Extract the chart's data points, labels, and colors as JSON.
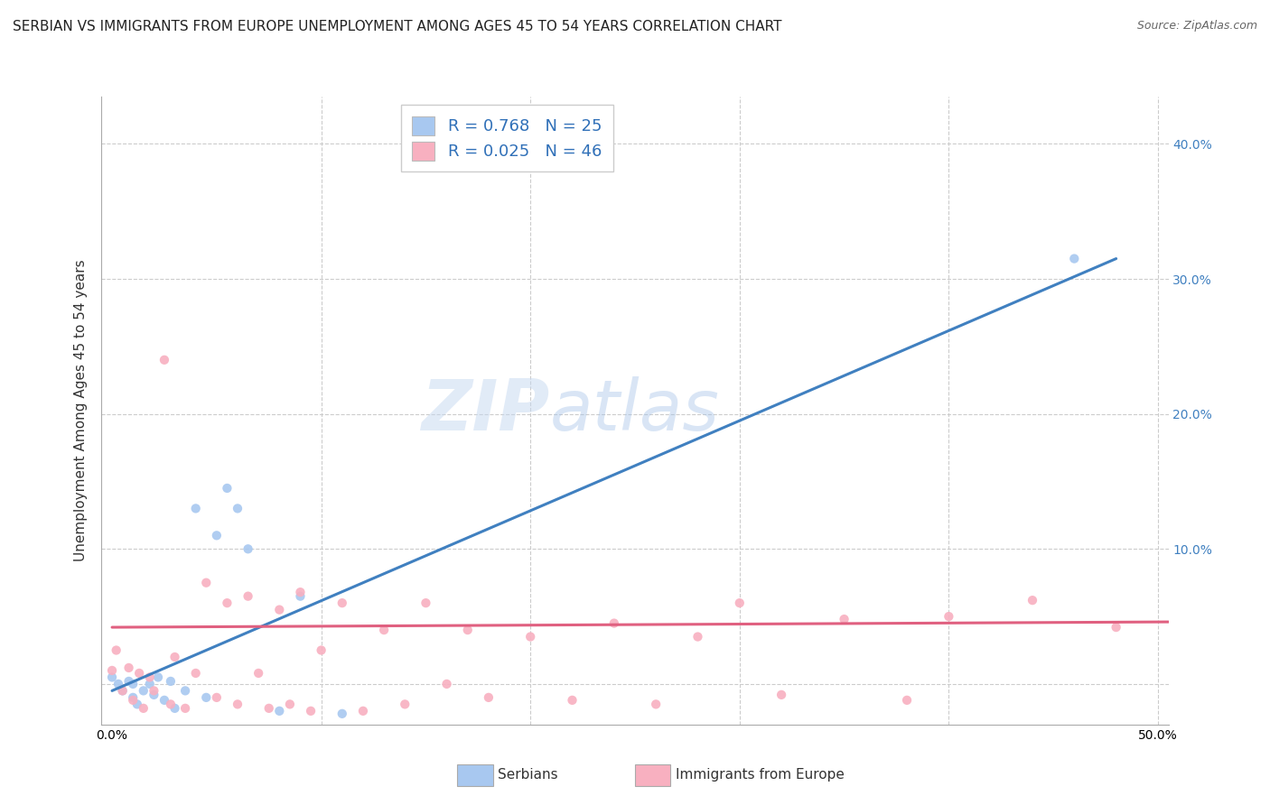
{
  "title": "SERBIAN VS IMMIGRANTS FROM EUROPE UNEMPLOYMENT AMONG AGES 45 TO 54 YEARS CORRELATION CHART",
  "source": "Source: ZipAtlas.com",
  "ylabel": "Unemployment Among Ages 45 to 54 years",
  "xlim": [
    -0.005,
    0.505
  ],
  "ylim": [
    -0.03,
    0.435
  ],
  "xticks": [
    0.0,
    0.1,
    0.2,
    0.3,
    0.4,
    0.5
  ],
  "xticklabels": [
    "0.0%",
    "",
    "",
    "",
    "",
    "50.0%"
  ],
  "yticks": [
    0.0,
    0.1,
    0.2,
    0.3,
    0.4
  ],
  "yticklabels_left": [
    "",
    "",
    "",
    "",
    ""
  ],
  "yticklabels_right": [
    "",
    "10.0%",
    "20.0%",
    "30.0%",
    "40.0%"
  ],
  "series": [
    {
      "label": "Serbians",
      "R": 0.768,
      "N": 25,
      "color": "#a8c8f0",
      "line_color": "#4080c0",
      "scatter_x": [
        0.0,
        0.003,
        0.005,
        0.008,
        0.01,
        0.01,
        0.012,
        0.015,
        0.018,
        0.02,
        0.022,
        0.025,
        0.028,
        0.03,
        0.035,
        0.04,
        0.045,
        0.05,
        0.055,
        0.06,
        0.065,
        0.08,
        0.09,
        0.11,
        0.46
      ],
      "scatter_y": [
        0.005,
        0.0,
        -0.005,
        0.002,
        -0.01,
        0.0,
        -0.015,
        -0.005,
        0.0,
        -0.008,
        0.005,
        -0.012,
        0.002,
        -0.018,
        -0.005,
        0.13,
        -0.01,
        0.11,
        0.145,
        0.13,
        0.1,
        -0.02,
        0.065,
        -0.022,
        0.315
      ],
      "trend_x": [
        0.0,
        0.48
      ],
      "trend_y": [
        -0.005,
        0.315
      ]
    },
    {
      "label": "Immigrants from Europe",
      "R": 0.025,
      "N": 46,
      "color": "#f8b0c0",
      "line_color": "#e06080",
      "scatter_x": [
        0.0,
        0.002,
        0.005,
        0.008,
        0.01,
        0.013,
        0.015,
        0.018,
        0.02,
        0.025,
        0.028,
        0.03,
        0.035,
        0.04,
        0.045,
        0.05,
        0.055,
        0.06,
        0.065,
        0.07,
        0.075,
        0.08,
        0.085,
        0.09,
        0.095,
        0.1,
        0.11,
        0.12,
        0.13,
        0.14,
        0.15,
        0.16,
        0.17,
        0.18,
        0.2,
        0.22,
        0.24,
        0.26,
        0.28,
        0.3,
        0.32,
        0.35,
        0.38,
        0.4,
        0.44,
        0.48
      ],
      "scatter_y": [
        0.01,
        0.025,
        -0.005,
        0.012,
        -0.012,
        0.008,
        -0.018,
        0.005,
        -0.005,
        0.24,
        -0.015,
        0.02,
        -0.018,
        0.008,
        0.075,
        -0.01,
        0.06,
        -0.015,
        0.065,
        0.008,
        -0.018,
        0.055,
        -0.015,
        0.068,
        -0.02,
        0.025,
        0.06,
        -0.02,
        0.04,
        -0.015,
        0.06,
        0.0,
        0.04,
        -0.01,
        0.035,
        -0.012,
        0.045,
        -0.015,
        0.035,
        0.06,
        -0.008,
        0.048,
        -0.012,
        0.05,
        0.062,
        0.042
      ],
      "trend_x": [
        0.0,
        0.505
      ],
      "trend_y": [
        0.042,
        0.046
      ]
    }
  ],
  "watermark_zip": "ZIP",
  "watermark_atlas": "atlas",
  "background_color": "#ffffff",
  "grid_color": "#cccccc",
  "title_fontsize": 11,
  "axis_label_fontsize": 11,
  "tick_fontsize": 10,
  "right_tick_color": "#4080c0"
}
